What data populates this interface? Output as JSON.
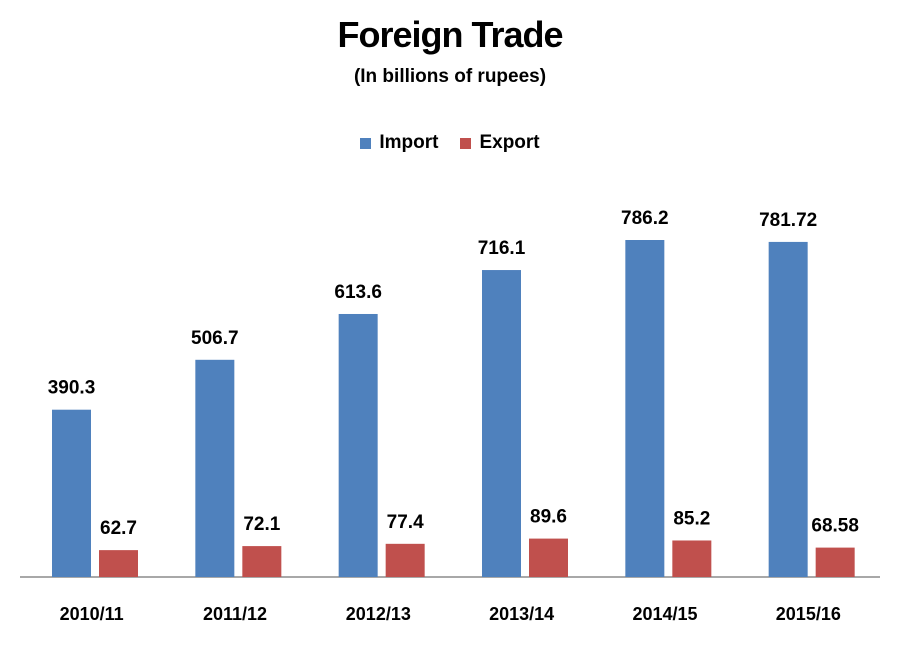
{
  "chart_data": {
    "type": "bar",
    "title": "Foreign Trade",
    "subtitle": "(In billions of rupees)",
    "xlabel": "",
    "ylabel": "",
    "categories": [
      "2010/11",
      "2011/12",
      "2012/13",
      "2013/14",
      "2014/15",
      "2015/16"
    ],
    "series": [
      {
        "name": "Import",
        "color": "#4F81BD",
        "values": [
          390.3,
          506.7,
          613.6,
          716.1,
          786.2,
          781.72
        ],
        "labels": [
          "390.3",
          "506.7",
          "613.6",
          "716.1",
          "786.2",
          "781.72"
        ]
      },
      {
        "name": "Export",
        "color": "#C0504D",
        "values": [
          62.7,
          72.1,
          77.4,
          89.6,
          85.2,
          68.58
        ],
        "labels": [
          "62.7",
          "72.1",
          "77.4",
          "89.6",
          "85.2",
          "68.58"
        ]
      }
    ],
    "ylim": [
      0,
      786.2
    ],
    "grid": false,
    "legend": "top-center"
  }
}
